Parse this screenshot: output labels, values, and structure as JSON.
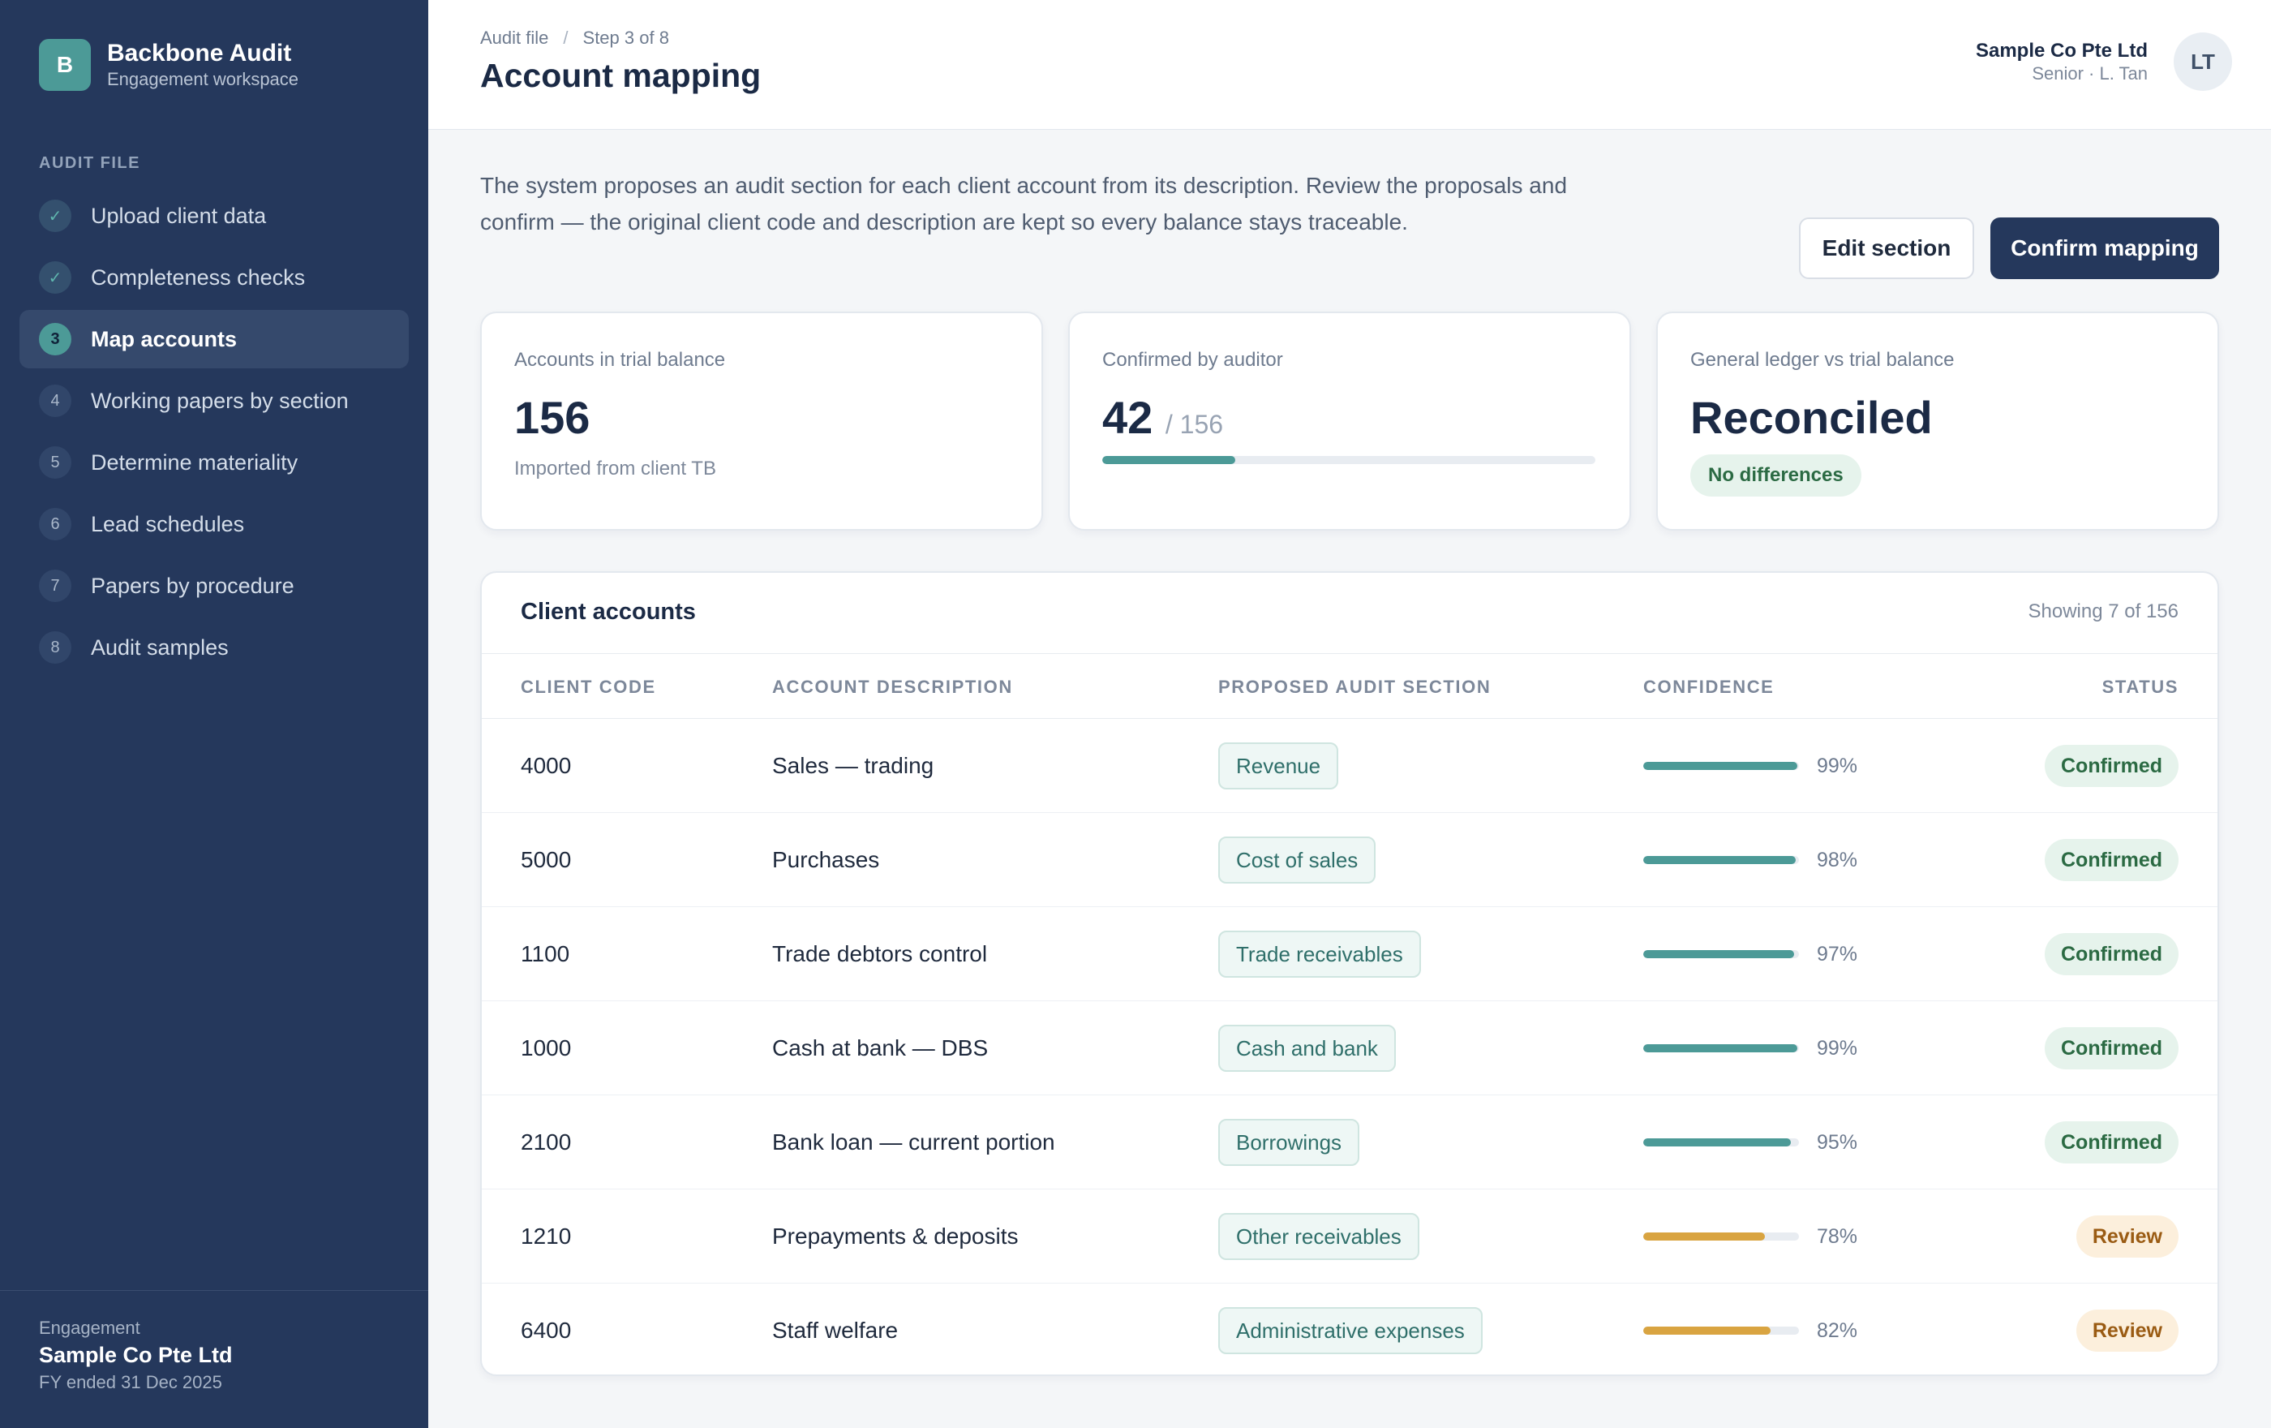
{
  "brand": {
    "logo_letter": "B",
    "title": "Backbone Audit",
    "subtitle": "Engagement workspace"
  },
  "sidebar": {
    "heading": "AUDIT FILE",
    "items": [
      {
        "step": "✓",
        "label": "Upload client data",
        "state": "done"
      },
      {
        "step": "✓",
        "label": "Completeness checks",
        "state": "done"
      },
      {
        "step": "3",
        "label": "Map accounts",
        "state": "current"
      },
      {
        "step": "4",
        "label": "Working papers by section",
        "state": "todo"
      },
      {
        "step": "5",
        "label": "Determine materiality",
        "state": "todo"
      },
      {
        "step": "6",
        "label": "Lead schedules",
        "state": "todo"
      },
      {
        "step": "7",
        "label": "Papers by procedure",
        "state": "todo"
      },
      {
        "step": "8",
        "label": "Audit samples",
        "state": "todo"
      }
    ],
    "footer": {
      "label": "Engagement",
      "name": "Sample Co Pte Ltd",
      "fy": "FY ended 31 Dec 2025"
    }
  },
  "header": {
    "breadcrumb": [
      "Audit file",
      "Step 3 of 8"
    ],
    "breadcrumb_sep": "/",
    "title": "Account mapping",
    "user": {
      "org": "Sample Co Pte Ltd",
      "role": "Senior · L. Tan",
      "initials": "LT"
    }
  },
  "intro": "The system proposes an audit section for each client account from its description. Review the proposals and confirm — the original client code and description are kept so every balance stays traceable.",
  "actions": {
    "edit": "Edit section",
    "confirm": "Confirm mapping"
  },
  "cards": {
    "accounts": {
      "label": "Accounts in trial balance",
      "value": "156",
      "sub": "Imported from client TB"
    },
    "confirmed": {
      "label": "Confirmed by auditor",
      "value": "42",
      "total": "/ 156",
      "progress": 0.27
    },
    "reconcile": {
      "label": "General ledger vs trial balance",
      "value": "Reconciled",
      "badge": "No differences"
    }
  },
  "table": {
    "title": "Client accounts",
    "count": "Showing 7 of 156",
    "columns": [
      "CLIENT CODE",
      "ACCOUNT DESCRIPTION",
      "PROPOSED AUDIT SECTION",
      "CONFIDENCE",
      "STATUS"
    ],
    "rows": [
      {
        "code": "4000",
        "desc": "Sales — trading",
        "section": "Revenue",
        "confidence": 99,
        "conf_label": "99%",
        "status": "Confirmed"
      },
      {
        "code": "5000",
        "desc": "Purchases",
        "section": "Cost of sales",
        "confidence": 98,
        "conf_label": "98%",
        "status": "Confirmed"
      },
      {
        "code": "1100",
        "desc": "Trade debtors control",
        "section": "Trade receivables",
        "confidence": 97,
        "conf_label": "97%",
        "status": "Confirmed"
      },
      {
        "code": "1000",
        "desc": "Cash at bank — DBS",
        "section": "Cash and bank",
        "confidence": 99,
        "conf_label": "99%",
        "status": "Confirmed"
      },
      {
        "code": "2100",
        "desc": "Bank loan — current portion",
        "section": "Borrowings",
        "confidence": 95,
        "conf_label": "95%",
        "status": "Confirmed"
      },
      {
        "code": "1210",
        "desc": "Prepayments & deposits",
        "section": "Other receivables",
        "confidence": 78,
        "conf_label": "78%",
        "status": "Review"
      },
      {
        "code": "6400",
        "desc": "Staff welfare",
        "section": "Administrative expenses",
        "confidence": 82,
        "conf_label": "82%",
        "status": "Review"
      }
    ]
  },
  "colors": {
    "teal": "#4c9a97",
    "amber": "#d9a441",
    "navy": "#25385c"
  }
}
